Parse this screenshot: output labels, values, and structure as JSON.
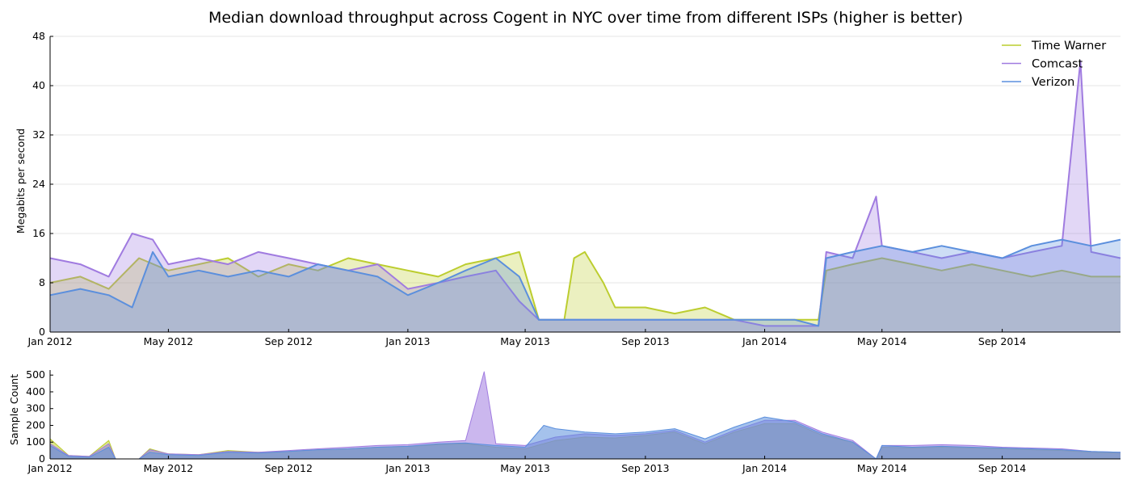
{
  "chart_data": [
    {
      "type": "area",
      "title": "Median download throughput across Cogent in NYC over time from different ISPs (higher is better)",
      "xlabel": "",
      "ylabel": "Megabits per second",
      "xlim": [
        "2012-01-01",
        "2014-12-31"
      ],
      "ylim": [
        0,
        48
      ],
      "yticks": [
        0,
        8,
        16,
        24,
        32,
        40,
        48
      ],
      "xticks": [
        "Jan 2012",
        "May 2012",
        "Sep 2012",
        "Jan 2013",
        "May 2013",
        "Sep 2013",
        "Jan 2014",
        "May 2014",
        "Sep 2014"
      ],
      "grid": "horizontal",
      "legend": "top-right",
      "series": [
        {
          "name": "Time Warner",
          "color": "#bccd2f",
          "x": [
            "2012-01-01",
            "2012-02-01",
            "2012-03-01",
            "2012-04-01",
            "2012-05-01",
            "2012-06-01",
            "2012-07-01",
            "2012-08-01",
            "2012-09-01",
            "2012-10-01",
            "2012-11-01",
            "2012-12-01",
            "2013-01-01",
            "2013-02-01",
            "2013-03-01",
            "2013-04-01",
            "2013-04-25",
            "2013-05-15",
            "2013-06-10",
            "2013-06-20",
            "2013-07-01",
            "2013-07-20",
            "2013-08-01",
            "2013-09-01",
            "2013-10-01",
            "2013-11-01",
            "2013-12-01",
            "2014-01-01",
            "2014-02-01",
            "2014-02-25",
            "2014-03-05",
            "2014-04-01",
            "2014-05-01",
            "2014-06-01",
            "2014-07-01",
            "2014-08-01",
            "2014-09-01",
            "2014-10-01",
            "2014-11-01",
            "2014-12-01",
            "2014-12-31"
          ],
          "y": [
            8,
            9,
            7,
            12,
            10,
            11,
            12,
            9,
            11,
            10,
            12,
            11,
            10,
            9,
            11,
            12,
            13,
            2,
            2,
            12,
            13,
            8,
            4,
            4,
            3,
            4,
            2,
            2,
            2,
            2,
            10,
            11,
            12,
            11,
            10,
            11,
            10,
            9,
            10,
            9,
            9
          ]
        },
        {
          "name": "Comcast",
          "color": "#a07be0",
          "x": [
            "2012-01-01",
            "2012-02-01",
            "2012-03-01",
            "2012-03-25",
            "2012-04-15",
            "2012-05-01",
            "2012-06-01",
            "2012-07-01",
            "2012-08-01",
            "2012-09-01",
            "2012-10-01",
            "2012-11-01",
            "2012-12-01",
            "2013-01-01",
            "2013-02-01",
            "2013-03-01",
            "2013-04-01",
            "2013-04-25",
            "2013-05-15",
            "2013-06-01",
            "2013-07-01",
            "2013-08-01",
            "2013-09-01",
            "2013-10-01",
            "2013-11-01",
            "2013-12-01",
            "2014-01-01",
            "2014-02-01",
            "2014-02-25",
            "2014-03-05",
            "2014-04-01",
            "2014-04-25",
            "2014-05-01",
            "2014-06-01",
            "2014-07-01",
            "2014-08-01",
            "2014-09-01",
            "2014-10-01",
            "2014-11-01",
            "2014-11-20",
            "2014-12-01",
            "2014-12-31"
          ],
          "y": [
            12,
            11,
            9,
            16,
            15,
            11,
            12,
            11,
            13,
            12,
            11,
            10,
            11,
            7,
            8,
            9,
            10,
            5,
            2,
            2,
            2,
            2,
            2,
            2,
            2,
            2,
            1,
            1,
            1,
            13,
            12,
            22,
            14,
            13,
            12,
            13,
            12,
            13,
            14,
            44,
            13,
            12
          ]
        },
        {
          "name": "Verizon",
          "color": "#5b8fdd",
          "x": [
            "2012-01-01",
            "2012-02-01",
            "2012-03-01",
            "2012-03-25",
            "2012-04-15",
            "2012-05-01",
            "2012-06-01",
            "2012-07-01",
            "2012-08-01",
            "2012-09-01",
            "2012-10-01",
            "2012-11-01",
            "2012-12-01",
            "2013-01-01",
            "2013-02-01",
            "2013-03-01",
            "2013-04-01",
            "2013-04-25",
            "2013-05-15",
            "2013-06-01",
            "2013-07-01",
            "2013-08-01",
            "2013-09-01",
            "2013-10-01",
            "2013-11-01",
            "2013-12-01",
            "2014-01-01",
            "2014-02-01",
            "2014-02-25",
            "2014-03-05",
            "2014-04-01",
            "2014-05-01",
            "2014-06-01",
            "2014-07-01",
            "2014-08-01",
            "2014-09-01",
            "2014-10-01",
            "2014-11-01",
            "2014-12-01",
            "2014-12-31"
          ],
          "y": [
            6,
            7,
            6,
            4,
            13,
            9,
            10,
            9,
            10,
            9,
            11,
            10,
            9,
            6,
            8,
            10,
            12,
            9,
            2,
            2,
            2,
            2,
            2,
            2,
            2,
            2,
            2,
            2,
            1,
            12,
            13,
            14,
            13,
            14,
            13,
            12,
            14,
            15,
            14,
            15
          ]
        }
      ]
    },
    {
      "type": "area",
      "title": "",
      "xlabel": "",
      "ylabel": "Sample Count",
      "xlim": [
        "2012-01-01",
        "2014-12-31"
      ],
      "ylim": [
        0,
        530
      ],
      "yticks": [
        0,
        100,
        200,
        300,
        400,
        500
      ],
      "xticks": [
        "Jan 2012",
        "May 2012",
        "Sep 2012",
        "Jan 2013",
        "May 2013",
        "Sep 2013",
        "Jan 2014",
        "May 2014",
        "Sep 2014"
      ],
      "series": [
        {
          "name": "Time Warner",
          "color": "#bccd2f",
          "x": [
            "2012-01-01",
            "2012-01-20",
            "2012-02-10",
            "2012-03-01",
            "2012-03-08",
            "2012-04-01",
            "2012-04-12",
            "2012-05-01",
            "2012-06-01",
            "2012-07-01",
            "2012-08-01",
            "2012-09-01",
            "2012-10-01",
            "2012-11-01",
            "2012-12-01",
            "2013-01-01",
            "2013-02-01",
            "2013-03-01",
            "2013-04-01",
            "2013-05-01",
            "2013-06-01",
            "2013-07-01",
            "2013-08-01",
            "2013-09-01",
            "2013-10-01",
            "2013-11-01",
            "2013-12-01",
            "2014-01-01",
            "2014-02-01",
            "2014-03-01",
            "2014-04-01",
            "2014-04-25",
            "2014-05-01",
            "2014-06-01",
            "2014-07-01",
            "2014-08-01",
            "2014-09-01",
            "2014-10-01",
            "2014-11-01",
            "2014-12-01",
            "2014-12-31"
          ],
          "y": [
            120,
            20,
            15,
            110,
            0,
            0,
            60,
            30,
            25,
            50,
            40,
            45,
            55,
            60,
            70,
            75,
            85,
            90,
            70,
            60,
            110,
            130,
            125,
            140,
            160,
            90,
            160,
            210,
            210,
            140,
            100,
            0,
            70,
            65,
            70,
            65,
            60,
            55,
            50,
            40,
            35
          ]
        },
        {
          "name": "Comcast",
          "color": "#a07be0",
          "x": [
            "2012-01-01",
            "2012-01-20",
            "2012-02-10",
            "2012-03-01",
            "2012-03-08",
            "2012-04-01",
            "2012-04-12",
            "2012-05-01",
            "2012-06-01",
            "2012-07-01",
            "2012-08-01",
            "2012-09-01",
            "2012-10-01",
            "2012-11-01",
            "2012-12-01",
            "2013-01-01",
            "2013-02-01",
            "2013-03-01",
            "2013-03-20",
            "2013-04-01",
            "2013-05-01",
            "2013-06-01",
            "2013-07-01",
            "2013-08-01",
            "2013-09-01",
            "2013-10-01",
            "2013-11-01",
            "2013-12-01",
            "2014-01-01",
            "2014-02-01",
            "2014-03-01",
            "2014-04-01",
            "2014-04-25",
            "2014-05-01",
            "2014-06-01",
            "2014-07-01",
            "2014-08-01",
            "2014-09-01",
            "2014-10-01",
            "2014-11-01",
            "2014-12-01",
            "2014-12-31"
          ],
          "y": [
            90,
            20,
            15,
            90,
            0,
            0,
            55,
            30,
            25,
            45,
            40,
            50,
            60,
            70,
            80,
            85,
            100,
            110,
            520,
            90,
            80,
            130,
            150,
            140,
            150,
            170,
            100,
            170,
            230,
            230,
            160,
            110,
            0,
            80,
            80,
            85,
            80,
            70,
            65,
            60,
            45,
            40
          ]
        },
        {
          "name": "Verizon",
          "color": "#5b8fdd",
          "x": [
            "2012-01-01",
            "2012-01-20",
            "2012-02-10",
            "2012-03-01",
            "2012-03-08",
            "2012-04-01",
            "2012-04-12",
            "2012-05-01",
            "2012-06-01",
            "2012-07-01",
            "2012-08-01",
            "2012-09-01",
            "2012-10-01",
            "2012-11-01",
            "2012-12-01",
            "2013-01-01",
            "2013-02-01",
            "2013-03-01",
            "2013-04-01",
            "2013-05-01",
            "2013-05-20",
            "2013-06-01",
            "2013-07-01",
            "2013-08-01",
            "2013-09-01",
            "2013-10-01",
            "2013-11-01",
            "2013-12-01",
            "2014-01-01",
            "2014-02-01",
            "2014-03-01",
            "2014-04-01",
            "2014-04-25",
            "2014-05-01",
            "2014-06-01",
            "2014-07-01",
            "2014-08-01",
            "2014-09-01",
            "2014-10-01",
            "2014-11-01",
            "2014-12-01",
            "2014-12-31"
          ],
          "y": [
            80,
            15,
            10,
            70,
            0,
            0,
            40,
            25,
            20,
            40,
            35,
            45,
            55,
            60,
            70,
            75,
            90,
            95,
            80,
            70,
            200,
            180,
            160,
            150,
            160,
            180,
            120,
            190,
            250,
            220,
            150,
            100,
            0,
            80,
            70,
            75,
            70,
            65,
            60,
            55,
            45,
            40
          ]
        }
      ]
    }
  ]
}
